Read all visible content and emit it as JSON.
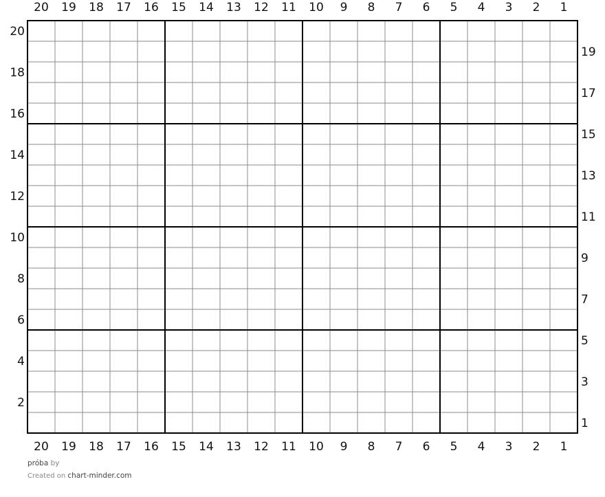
{
  "chart": {
    "columns": 20,
    "rows": 20,
    "major_every": 5,
    "column_labels": [
      "20",
      "19",
      "18",
      "17",
      "16",
      "15",
      "14",
      "13",
      "12",
      "11",
      "10",
      "9",
      "8",
      "7",
      "6",
      "5",
      "4",
      "3",
      "2",
      "1"
    ],
    "left_row_labels": [
      "20",
      "18",
      "16",
      "14",
      "12",
      "10",
      "8",
      "6",
      "4",
      "2"
    ],
    "right_row_labels": [
      "19",
      "17",
      "15",
      "13",
      "11",
      "9",
      "7",
      "5",
      "3",
      "1"
    ],
    "colors": {
      "minor_line": "#888888",
      "major_line": "#000000",
      "label": "#111111"
    }
  },
  "footer": {
    "title": "próba",
    "by": "by",
    "created_on": "Created on",
    "site": "chart-minder.com"
  }
}
